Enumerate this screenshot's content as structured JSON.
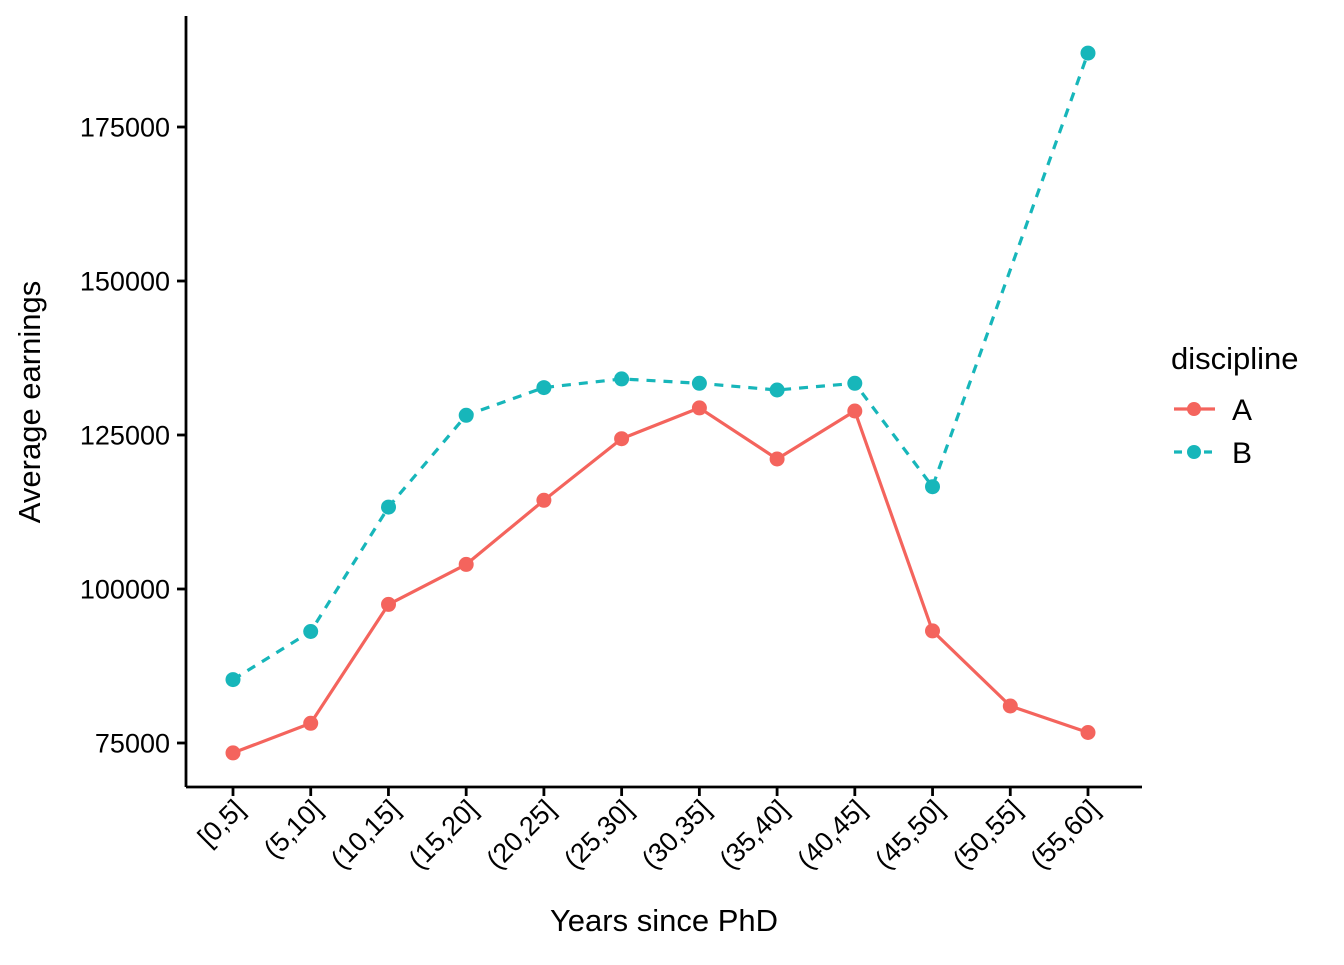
{
  "chart_data": {
    "type": "line",
    "title": "",
    "xlabel": "Years since PhD",
    "ylabel": "Average earnings",
    "categories": [
      "[0,5]",
      "(5,10]",
      "(10,15]",
      "(15,20]",
      "(20,25]",
      "(25,30]",
      "(30,35]",
      "(35,40]",
      "(40,45]",
      "(45,50]",
      "(50,55]",
      "(55,60]"
    ],
    "y_ticks": [
      75000,
      100000,
      125000,
      150000,
      175000
    ],
    "y_tick_labels": [
      "75000",
      "100000",
      "125000",
      "150000",
      "175000"
    ],
    "ylim": [
      68000,
      193000
    ],
    "grid": false,
    "theme": "classic (white background, black L-shaped axes, outward ticks, x labels rotated 45)",
    "series": [
      {
        "name": "A",
        "color": "#F4645D",
        "linetype": "solid",
        "marker": "circle",
        "values": [
          73400,
          78200,
          97500,
          104000,
          114400,
          124400,
          129400,
          121100,
          128900,
          93200,
          81000,
          76700
        ]
      },
      {
        "name": "B",
        "color": "#17B6BA",
        "linetype": "dashed",
        "marker": "circle",
        "values": [
          85300,
          93100,
          113300,
          128200,
          132700,
          134100,
          133400,
          132300,
          133400,
          116600,
          null,
          187000
        ]
      }
    ],
    "legend": {
      "title": "discipline",
      "position": "right",
      "entries": [
        {
          "label": "A",
          "color": "#F4645D",
          "linetype": "solid"
        },
        {
          "label": "B",
          "color": "#17B6BA",
          "linetype": "dashed"
        }
      ]
    },
    "colors": {
      "axis": "#000000",
      "text": "#000000",
      "background": "#ffffff"
    }
  }
}
